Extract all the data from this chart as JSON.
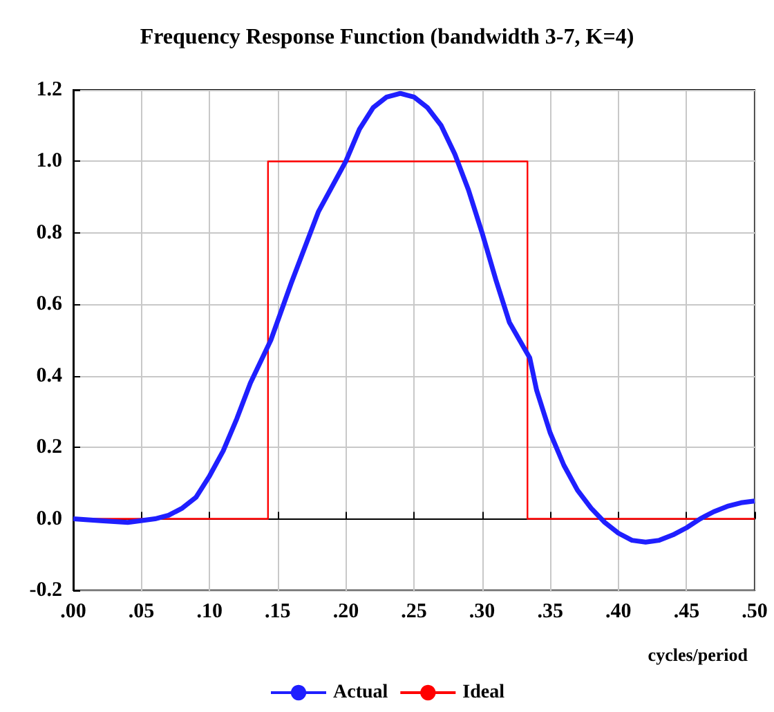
{
  "chart_data": {
    "type": "line",
    "title": "Frequency Response Function (bandwidth 3-7, K=4)",
    "xlabel": "cycles/period",
    "series": [
      {
        "name": "Actual",
        "color": "#1f1fff",
        "x": [
          0,
          0.02,
          0.04,
          0.06,
          0.07,
          0.08,
          0.09,
          0.1,
          0.11,
          0.12,
          0.13,
          0.145,
          0.16,
          0.18,
          0.2,
          0.21,
          0.22,
          0.23,
          0.24,
          0.25,
          0.26,
          0.27,
          0.28,
          0.29,
          0.3,
          0.31,
          0.32,
          0.335,
          0.34,
          0.35,
          0.36,
          0.37,
          0.38,
          0.39,
          0.4,
          0.41,
          0.42,
          0.43,
          0.44,
          0.45,
          0.46,
          0.47,
          0.48,
          0.49,
          0.5
        ],
        "values": [
          0,
          -0.005,
          -0.01,
          0,
          0.01,
          0.03,
          0.06,
          0.12,
          0.19,
          0.28,
          0.38,
          0.5,
          0.66,
          0.86,
          1.0,
          1.09,
          1.15,
          1.18,
          1.19,
          1.18,
          1.15,
          1.1,
          1.02,
          0.92,
          0.8,
          0.67,
          0.55,
          0.45,
          0.36,
          0.24,
          0.15,
          0.08,
          0.03,
          -0.01,
          -0.04,
          -0.06,
          -0.065,
          -0.06,
          -0.045,
          -0.025,
          0,
          0.02,
          0.035,
          0.045,
          0.05
        ]
      },
      {
        "name": "Ideal",
        "color": "#ff0000",
        "x": [
          0,
          0.1429,
          0.1429,
          0.3333,
          0.3333,
          0.5
        ],
        "values": [
          0,
          0,
          1,
          1,
          0,
          0
        ]
      }
    ],
    "xlim": [
      0,
      0.5
    ],
    "xticks": [
      {
        "value": 0,
        "label": ".00"
      },
      {
        "value": 0.05,
        "label": ".05"
      },
      {
        "value": 0.1,
        "label": ".10"
      },
      {
        "value": 0.15,
        "label": ".15"
      },
      {
        "value": 0.2,
        "label": ".20"
      },
      {
        "value": 0.25,
        "label": ".25"
      },
      {
        "value": 0.3,
        "label": ".30"
      },
      {
        "value": 0.35,
        "label": ".35"
      },
      {
        "value": 0.4,
        "label": ".40"
      },
      {
        "value": 0.45,
        "label": ".45"
      },
      {
        "value": 0.5,
        "label": ".50"
      }
    ],
    "ylim": [
      -0.2,
      1.2
    ],
    "yticks": [
      -0.2,
      {
        "value": 0,
        "label": "0.0"
      },
      0.2,
      0.4,
      0.6,
      0.8,
      {
        "value": 1,
        "label": "1.0"
      },
      1.2
    ],
    "grid": true,
    "legend": "bottom",
    "marker": "none",
    "line_style": "solid"
  }
}
